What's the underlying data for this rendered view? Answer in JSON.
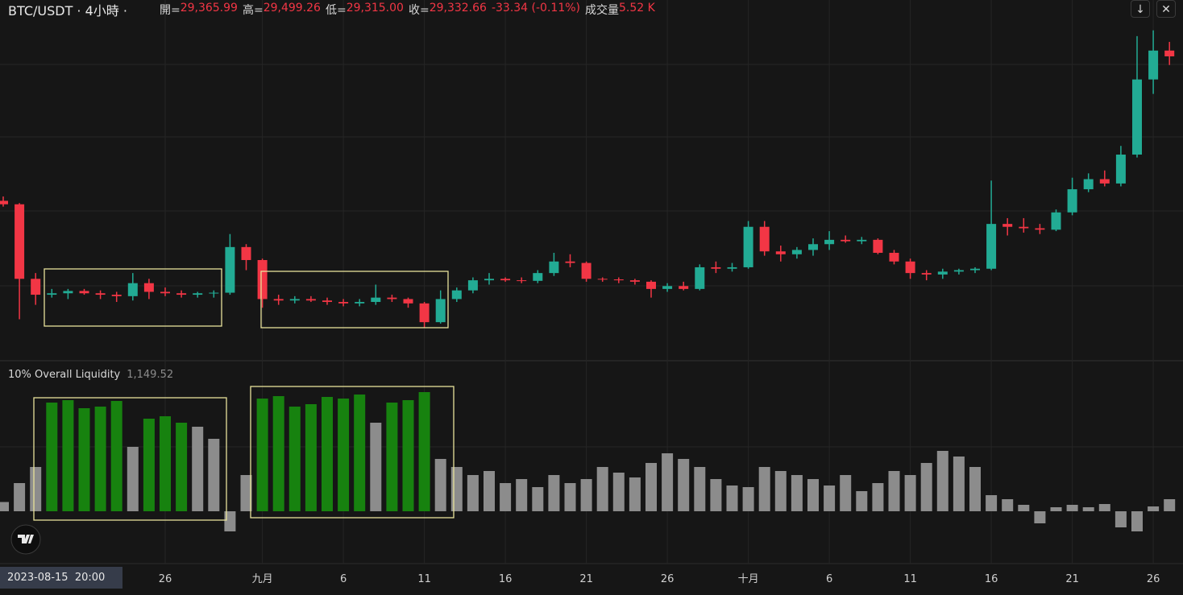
{
  "chart_data": {
    "type": "candlestick",
    "header": {
      "symbol": "BTC/USDT · 4小時 ·",
      "items": [
        {
          "key": "開=",
          "value": "29,365.99"
        },
        {
          "key": "高=",
          "value": "29,499.26"
        },
        {
          "key": "低=",
          "value": "29,315.00"
        },
        {
          "key": "收=",
          "value": "29,332.66"
        },
        {
          "key": "",
          "value": "-33.34 (-0.11%)"
        },
        {
          "key": "成交量",
          "value": "5.52 K"
        }
      ]
    },
    "crosshair_label": "2023-08-15  20:00",
    "categories": [
      null,
      null,
      null,
      null,
      null,
      null,
      null,
      null,
      null,
      null,
      "26",
      null,
      null,
      null,
      null,
      null,
      "九月",
      null,
      null,
      null,
      null,
      "6",
      null,
      null,
      null,
      null,
      "11",
      null,
      null,
      null,
      null,
      "16",
      null,
      null,
      null,
      null,
      "21",
      null,
      null,
      null,
      null,
      "26",
      null,
      null,
      null,
      null,
      "十月",
      null,
      null,
      null,
      null,
      "6",
      null,
      null,
      null,
      null,
      "11",
      null,
      null,
      null,
      null,
      "16",
      null,
      null,
      null,
      null,
      "21",
      null,
      null,
      null,
      null,
      "26",
      null
    ],
    "up_color": "#22ab94",
    "down_color": "#f23645",
    "ylim": [
      23850,
      36250
    ],
    "open": [
      29300,
      29180,
      26600,
      26050,
      26100,
      26180,
      26100,
      26050,
      26000,
      26450,
      26150,
      26100,
      26050,
      26100,
      26120,
      27700,
      27250,
      25900,
      25850,
      25900,
      25850,
      25800,
      25750,
      25800,
      25950,
      25900,
      25750,
      25100,
      25900,
      26200,
      26550,
      26600,
      26550,
      26530,
      26800,
      27200,
      27150,
      26600,
      26580,
      26550,
      26500,
      26250,
      26350,
      26250,
      27000,
      26950,
      27000,
      28400,
      27550,
      27450,
      27600,
      27800,
      27950,
      27900,
      27950,
      27500,
      27200,
      26800,
      26750,
      26850,
      26900,
      26950,
      28500,
      28400,
      28350,
      28300,
      28900,
      29700,
      30050,
      29900,
      30900,
      33500,
      34500
    ],
    "high": [
      29450,
      29220,
      26800,
      26250,
      26250,
      26250,
      26200,
      26150,
      26800,
      26600,
      26300,
      26200,
      26150,
      26200,
      28150,
      27800,
      27300,
      26050,
      26000,
      26000,
      25950,
      25900,
      25900,
      26400,
      26050,
      25950,
      25800,
      26200,
      26300,
      26650,
      26800,
      26650,
      26650,
      26900,
      27500,
      27450,
      27200,
      26650,
      26650,
      26600,
      26550,
      26450,
      26500,
      27100,
      27200,
      27150,
      28600,
      28600,
      27750,
      27700,
      28000,
      28250,
      28100,
      28050,
      28000,
      27600,
      27300,
      26900,
      26950,
      26950,
      27000,
      30000,
      28700,
      28700,
      28500,
      29000,
      30100,
      30250,
      30350,
      31200,
      35000,
      35200,
      34800
    ],
    "low": [
      29100,
      25200,
      25700,
      25950,
      25900,
      26050,
      25900,
      25800,
      25850,
      25900,
      26000,
      25950,
      25950,
      25950,
      26050,
      26900,
      25600,
      25700,
      25750,
      25800,
      25700,
      25650,
      25650,
      25700,
      25800,
      25600,
      24900,
      25050,
      25800,
      26100,
      26400,
      26500,
      26450,
      26450,
      26700,
      27000,
      26500,
      26500,
      26450,
      26400,
      25950,
      26150,
      26200,
      26200,
      26800,
      26850,
      26950,
      27400,
      27200,
      27300,
      27400,
      27600,
      27850,
      27800,
      27450,
      27100,
      26600,
      26550,
      26600,
      26750,
      26800,
      26900,
      28100,
      28200,
      28150,
      28250,
      28800,
      29600,
      29800,
      29800,
      30800,
      33000,
      34000
    ],
    "close": [
      29180,
      26600,
      26050,
      26100,
      26180,
      26100,
      26050,
      26000,
      26450,
      26150,
      26100,
      26050,
      26100,
      26120,
      27700,
      27250,
      25900,
      25850,
      25900,
      25850,
      25800,
      25750,
      25800,
      25950,
      25900,
      25750,
      25100,
      25900,
      26200,
      26550,
      26600,
      26550,
      26530,
      26800,
      27200,
      27150,
      26600,
      26580,
      26550,
      26500,
      26250,
      26350,
      26250,
      27000,
      26950,
      27000,
      28400,
      27550,
      27450,
      27600,
      27800,
      27950,
      27900,
      27950,
      27500,
      27200,
      26800,
      26750,
      26850,
      26900,
      26950,
      28500,
      28400,
      28350,
      28300,
      28900,
      29700,
      30050,
      29900,
      30900,
      33500,
      34500,
      34300
    ],
    "indicator": {
      "type": "bar",
      "name": "10% Overall Liquidity",
      "value": "1,149.52",
      "ylim": [
        -6500,
        18000
      ],
      "values": [
        1149.52,
        3500,
        5500,
        13500,
        13800,
        12800,
        13000,
        13700,
        8000,
        11500,
        11800,
        11000,
        10500,
        9000,
        -2500,
        4500,
        14000,
        14300,
        13000,
        13300,
        14200,
        14000,
        14500,
        11000,
        13500,
        13800,
        14800,
        6500,
        5500,
        4500,
        5000,
        3500,
        4000,
        3000,
        4500,
        3500,
        4000,
        5500,
        4800,
        4200,
        6000,
        7200,
        6500,
        5500,
        4000,
        3200,
        3000,
        5500,
        5000,
        4500,
        4000,
        3200,
        4500,
        2500,
        3500,
        5000,
        4500,
        6000,
        7500,
        6800,
        5500,
        2000,
        1500,
        800,
        -1500,
        500,
        800,
        500,
        900,
        -2000,
        -2500,
        600,
        1500
      ],
      "colors": [
        "#8c8c8c",
        "#8c8c8c",
        "#8c8c8c",
        "#17820f",
        "#17820f",
        "#17820f",
        "#17820f",
        "#17820f",
        "#8c8c8c",
        "#17820f",
        "#17820f",
        "#17820f",
        "#8c8c8c",
        "#8c8c8c",
        "#8c8c8c",
        "#8c8c8c",
        "#17820f",
        "#17820f",
        "#17820f",
        "#17820f",
        "#17820f",
        "#17820f",
        "#17820f",
        "#8c8c8c",
        "#17820f",
        "#17820f",
        "#17820f",
        "#8c8c8c",
        "#8c8c8c",
        "#8c8c8c",
        "#8c8c8c",
        "#8c8c8c",
        "#8c8c8c",
        "#8c8c8c",
        "#8c8c8c",
        "#8c8c8c",
        "#8c8c8c",
        "#8c8c8c",
        "#8c8c8c",
        "#8c8c8c",
        "#8c8c8c",
        "#8c8c8c",
        "#8c8c8c",
        "#8c8c8c",
        "#8c8c8c",
        "#8c8c8c",
        "#8c8c8c",
        "#8c8c8c",
        "#8c8c8c",
        "#8c8c8c",
        "#8c8c8c",
        "#8c8c8c",
        "#8c8c8c",
        "#8c8c8c",
        "#8c8c8c",
        "#8c8c8c",
        "#8c8c8c",
        "#8c8c8c",
        "#8c8c8c",
        "#8c8c8c",
        "#8c8c8c",
        "#8c8c8c",
        "#8c8c8c",
        "#8c8c8c",
        "#8c8c8c",
        "#8c8c8c",
        "#8c8c8c",
        "#8c8c8c",
        "#8c8c8c",
        "#8c8c8c",
        "#8c8c8c",
        "#8c8c8c",
        "#8c8c8c"
      ]
    }
  }
}
